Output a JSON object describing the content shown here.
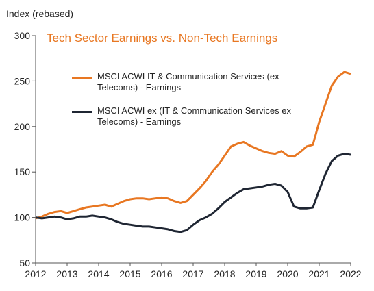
{
  "chart_data": {
    "type": "line",
    "title": "Tech Sector Earnings vs. Non-Tech Earnings",
    "ylabel": "Index (rebased)",
    "xlabel": "",
    "xlim": [
      2012,
      2022
    ],
    "ylim": [
      50,
      300
    ],
    "xticks": [
      "2012",
      "2013",
      "2014",
      "2015",
      "2016",
      "2017",
      "2018",
      "2019",
      "2020",
      "2021",
      "2022"
    ],
    "yticks": [
      "50",
      "100",
      "150",
      "200",
      "250",
      "300"
    ],
    "grid": false,
    "legend_position": "upper-left",
    "series": [
      {
        "name": "MSCI ACWI IT & Communication Services (ex Telecoms) - Earnings",
        "color": "#e87722",
        "x": [
          2012.0,
          2012.2,
          2012.4,
          2012.6,
          2012.8,
          2013.0,
          2013.2,
          2013.4,
          2013.6,
          2013.8,
          2014.0,
          2014.2,
          2014.4,
          2014.6,
          2014.8,
          2015.0,
          2015.2,
          2015.4,
          2015.6,
          2015.8,
          2016.0,
          2016.2,
          2016.4,
          2016.6,
          2016.8,
          2017.0,
          2017.2,
          2017.4,
          2017.6,
          2017.8,
          2018.0,
          2018.2,
          2018.4,
          2018.6,
          2018.8,
          2019.0,
          2019.2,
          2019.4,
          2019.6,
          2019.8,
          2020.0,
          2020.2,
          2020.4,
          2020.6,
          2020.8,
          2021.0,
          2021.2,
          2021.4,
          2021.6,
          2021.8,
          2022.0
        ],
        "values": [
          99,
          101,
          104,
          106,
          107,
          105,
          107,
          109,
          111,
          112,
          113,
          114,
          112,
          115,
          118,
          120,
          121,
          121,
          120,
          121,
          122,
          121,
          118,
          116,
          118,
          125,
          132,
          140,
          150,
          158,
          168,
          178,
          181,
          183,
          179,
          176,
          173,
          171,
          170,
          173,
          168,
          167,
          172,
          178,
          180,
          205,
          225,
          245,
          255,
          260,
          258
        ]
      },
      {
        "name": "MSCI ACWI ex (IT & Communication Services ex Telecoms) - Earnings",
        "color": "#1f2633",
        "x": [
          2012.0,
          2012.2,
          2012.4,
          2012.6,
          2012.8,
          2013.0,
          2013.2,
          2013.4,
          2013.6,
          2013.8,
          2014.0,
          2014.2,
          2014.4,
          2014.6,
          2014.8,
          2015.0,
          2015.2,
          2015.4,
          2015.6,
          2015.8,
          2016.0,
          2016.2,
          2016.4,
          2016.6,
          2016.8,
          2017.0,
          2017.2,
          2017.4,
          2017.6,
          2017.8,
          2018.0,
          2018.2,
          2018.4,
          2018.6,
          2018.8,
          2019.0,
          2019.2,
          2019.4,
          2019.6,
          2019.8,
          2020.0,
          2020.2,
          2020.4,
          2020.6,
          2020.8,
          2021.0,
          2021.2,
          2021.4,
          2021.6,
          2021.8,
          2022.0
        ],
        "values": [
          100,
          99,
          100,
          101,
          100,
          98,
          99,
          101,
          101,
          102,
          101,
          100,
          98,
          95,
          93,
          92,
          91,
          90,
          90,
          89,
          88,
          87,
          85,
          84,
          86,
          92,
          97,
          100,
          104,
          110,
          117,
          122,
          127,
          131,
          132,
          133,
          134,
          136,
          137,
          135,
          128,
          112,
          110,
          110,
          111,
          130,
          148,
          162,
          168,
          170,
          169
        ]
      }
    ]
  }
}
